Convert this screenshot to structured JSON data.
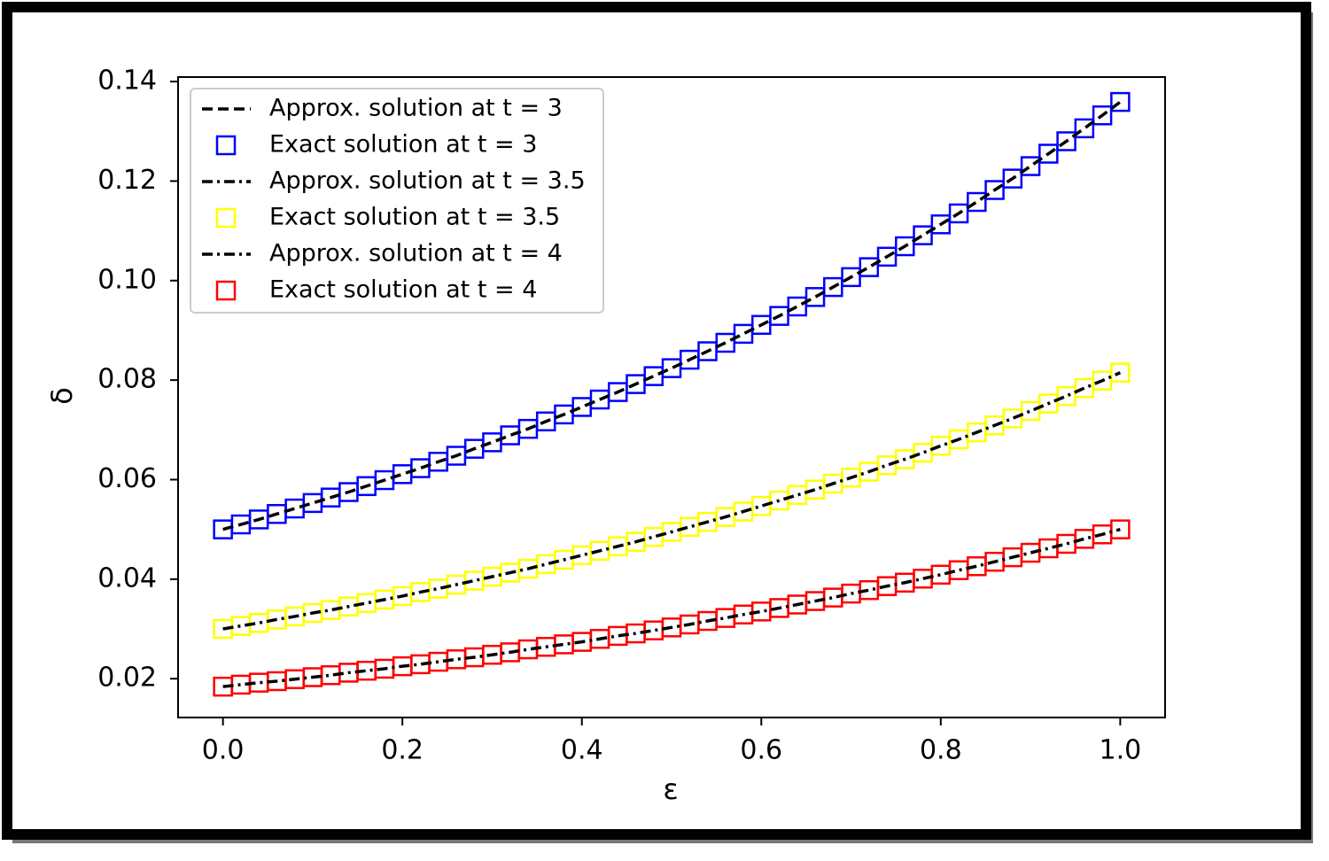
{
  "chart_data": {
    "type": "line",
    "xlabel": "ε",
    "ylabel": "δ",
    "x": [
      0,
      0.02,
      0.04,
      0.06,
      0.08,
      0.1,
      0.12,
      0.14,
      0.16,
      0.18,
      0.2,
      0.22,
      0.24,
      0.26,
      0.28,
      0.3,
      0.32,
      0.34,
      0.36,
      0.38,
      0.4,
      0.42,
      0.44,
      0.46,
      0.48,
      0.5,
      0.52,
      0.54,
      0.56,
      0.58,
      0.6,
      0.62,
      0.64,
      0.66,
      0.68,
      0.7,
      0.72,
      0.74,
      0.76,
      0.78,
      0.8,
      0.82,
      0.84,
      0.86,
      0.88,
      0.9,
      0.92,
      0.94,
      0.96,
      0.98,
      1
    ],
    "series": [
      {
        "name": "Approx. solution at t = 3",
        "color": "#000000",
        "linestyle": "dashed",
        "marker": "none",
        "values": [
          0.05,
          0.051,
          0.052,
          0.0531,
          0.0542,
          0.0553,
          0.0564,
          0.0575,
          0.0587,
          0.0599,
          0.0611,
          0.0623,
          0.0636,
          0.0648,
          0.0662,
          0.0675,
          0.0689,
          0.0702,
          0.0717,
          0.0731,
          0.0746,
          0.0761,
          0.0776,
          0.0792,
          0.0808,
          0.0824,
          0.0841,
          0.0858,
          0.0875,
          0.0893,
          0.0911,
          0.0929,
          0.0948,
          0.0967,
          0.0987,
          0.1007,
          0.1027,
          0.1048,
          0.1069,
          0.1091,
          0.1113,
          0.1135,
          0.1158,
          0.1182,
          0.1205,
          0.123,
          0.1255,
          0.128,
          0.1306,
          0.1332,
          0.1359
        ]
      },
      {
        "name": "Exact solution at t = 3",
        "color": "#0000ff",
        "linestyle": "none",
        "marker": "square",
        "values": [
          0.05,
          0.051,
          0.052,
          0.0531,
          0.0542,
          0.0553,
          0.0564,
          0.0575,
          0.0587,
          0.0599,
          0.0611,
          0.0623,
          0.0636,
          0.0648,
          0.0662,
          0.0675,
          0.0689,
          0.0702,
          0.0717,
          0.0731,
          0.0746,
          0.0761,
          0.0776,
          0.0792,
          0.0808,
          0.0824,
          0.0841,
          0.0858,
          0.0875,
          0.0893,
          0.0911,
          0.0929,
          0.0948,
          0.0967,
          0.0987,
          0.1007,
          0.1027,
          0.1048,
          0.1069,
          0.1091,
          0.1113,
          0.1135,
          0.1158,
          0.1182,
          0.1205,
          0.123,
          0.1255,
          0.128,
          0.1306,
          0.1332,
          0.1359
        ]
      },
      {
        "name": "Approx. solution at t = 3.5",
        "color": "#000000",
        "linestyle": "dashdot",
        "marker": "none",
        "values": [
          0.03,
          0.0306,
          0.0312,
          0.0319,
          0.0325,
          0.0332,
          0.0338,
          0.0345,
          0.0352,
          0.0359,
          0.0366,
          0.0374,
          0.0381,
          0.0389,
          0.0397,
          0.0405,
          0.0413,
          0.0421,
          0.043,
          0.0439,
          0.0448,
          0.0457,
          0.0466,
          0.0475,
          0.0485,
          0.0495,
          0.0505,
          0.0515,
          0.0525,
          0.0536,
          0.0547,
          0.0558,
          0.0569,
          0.058,
          0.0592,
          0.0604,
          0.0616,
          0.0629,
          0.0641,
          0.0654,
          0.0668,
          0.0681,
          0.0695,
          0.0709,
          0.0723,
          0.0738,
          0.0753,
          0.0768,
          0.0784,
          0.0799,
          0.0815
        ]
      },
      {
        "name": "Exact solution at t = 3.5",
        "color": "#ffff00",
        "linestyle": "none",
        "marker": "square",
        "values": [
          0.03,
          0.0306,
          0.0312,
          0.0319,
          0.0325,
          0.0332,
          0.0338,
          0.0345,
          0.0352,
          0.0359,
          0.0366,
          0.0374,
          0.0381,
          0.0389,
          0.0397,
          0.0405,
          0.0413,
          0.0421,
          0.043,
          0.0439,
          0.0448,
          0.0457,
          0.0466,
          0.0475,
          0.0485,
          0.0495,
          0.0505,
          0.0515,
          0.0525,
          0.0536,
          0.0547,
          0.0558,
          0.0569,
          0.058,
          0.0592,
          0.0604,
          0.0616,
          0.0629,
          0.0641,
          0.0654,
          0.0668,
          0.0681,
          0.0695,
          0.0709,
          0.0723,
          0.0738,
          0.0753,
          0.0768,
          0.0784,
          0.0799,
          0.0815
        ]
      },
      {
        "name": "Approx. solution at t = 4",
        "color": "#000000",
        "linestyle": "dashdot",
        "marker": "none",
        "values": [
          0.0184,
          0.0188,
          0.0192,
          0.0195,
          0.0199,
          0.0203,
          0.0207,
          0.0212,
          0.0216,
          0.022,
          0.0225,
          0.0229,
          0.0234,
          0.0239,
          0.0243,
          0.0248,
          0.0253,
          0.0259,
          0.0264,
          0.0269,
          0.0274,
          0.028,
          0.0286,
          0.0291,
          0.0297,
          0.0303,
          0.0309,
          0.0316,
          0.0322,
          0.0329,
          0.0335,
          0.0342,
          0.0349,
          0.0356,
          0.0363,
          0.0371,
          0.0378,
          0.0386,
          0.0393,
          0.0401,
          0.0409,
          0.0418,
          0.0426,
          0.0435,
          0.0444,
          0.0453,
          0.0462,
          0.0471,
          0.0481,
          0.049,
          0.05
        ]
      },
      {
        "name": "Exact solution at t = 4",
        "color": "#ff0000",
        "linestyle": "none",
        "marker": "square",
        "values": [
          0.0184,
          0.0188,
          0.0192,
          0.0195,
          0.0199,
          0.0203,
          0.0207,
          0.0212,
          0.0216,
          0.022,
          0.0225,
          0.0229,
          0.0234,
          0.0239,
          0.0243,
          0.0248,
          0.0253,
          0.0259,
          0.0264,
          0.0269,
          0.0274,
          0.028,
          0.0286,
          0.0291,
          0.0297,
          0.0303,
          0.0309,
          0.0316,
          0.0322,
          0.0329,
          0.0335,
          0.0342,
          0.0349,
          0.0356,
          0.0363,
          0.0371,
          0.0378,
          0.0386,
          0.0393,
          0.0401,
          0.0409,
          0.0418,
          0.0426,
          0.0435,
          0.0444,
          0.0453,
          0.0462,
          0.0471,
          0.0481,
          0.049,
          0.05
        ]
      }
    ],
    "xlim": [
      -0.05,
      1.05
    ],
    "xticks": [
      {
        "value": 0,
        "label": "0.0"
      },
      0.2,
      0.4,
      0.6,
      0.8,
      {
        "value": 1,
        "label": "1.0"
      }
    ],
    "ylim": [
      0.0122,
      0.1409
    ],
    "yticks": [
      0.02,
      0.04,
      0.06,
      0.08,
      {
        "value": 0.1,
        "label": "0.10"
      },
      0.12,
      0.14
    ],
    "grid": false,
    "legend": "upper left"
  }
}
